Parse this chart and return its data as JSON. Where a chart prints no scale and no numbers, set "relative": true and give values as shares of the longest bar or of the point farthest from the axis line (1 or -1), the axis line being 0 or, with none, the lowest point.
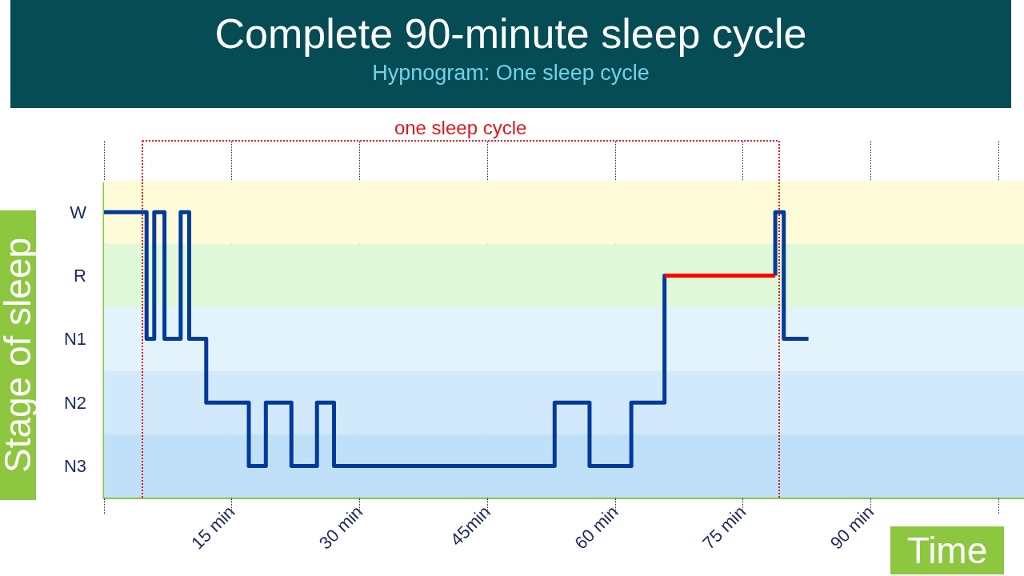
{
  "chart_data": {
    "type": "step",
    "title": "Complete 90-minute sleep cycle",
    "subtitle": "Hypnogram: One sleep cycle",
    "xlabel": "Time",
    "ylabel": "Stage of sleep",
    "annotations": [
      "one sleep cycle"
    ],
    "relative": true,
    "series": [
      {
        "color": "#003a9b",
        "x": [
          0,
          5,
          5.9,
          7.1,
          9,
          10,
          12,
          17,
          19,
          22,
          25,
          27,
          52.9,
          57,
          61.9,
          65.8,
          70,
          78.8,
          78.8,
          79.8,
          82.7
        ],
        "values": [
          1,
          0.556,
          1,
          0.556,
          1,
          0.556,
          0.333,
          0.111,
          0.333,
          0.111,
          0.333,
          0.111,
          0.333,
          0.111,
          0.333,
          0.778,
          null,
          0.778,
          1,
          0.556,
          0.556
        ]
      },
      {
        "color": "#ff0000",
        "x": [
          65.8,
          78.8
        ],
        "values": [
          0.778,
          0.778
        ]
      }
    ],
    "xlim": [
      0,
      108
    ],
    "xticks": [
      {
        "value": 0,
        "label": null
      },
      {
        "value": 15,
        "label": "15 min"
      },
      {
        "value": 30,
        "label": "30 min"
      },
      {
        "value": 45,
        "label": "45min"
      },
      {
        "value": 60,
        "label": "60 min"
      },
      {
        "value": 75,
        "label": "75 min"
      },
      {
        "value": 90,
        "label": "90 min"
      },
      {
        "value": 105,
        "label": null
      }
    ],
    "bands": [
      {
        "axis": "y",
        "from": 0.889,
        "to": 1.111,
        "label": "W",
        "color": "#fdfbd8"
      },
      {
        "axis": "y",
        "from": 0.667,
        "to": 0.889,
        "label": "R",
        "color": "#dff8d8"
      },
      {
        "axis": "y",
        "from": 0.444,
        "to": 0.667,
        "label": "N1",
        "color": "#e3f3fc"
      },
      {
        "axis": "y",
        "from": 0.222,
        "to": 0.444,
        "label": "N2",
        "color": "#d2e9fb"
      },
      {
        "axis": "y",
        "from": 0,
        "to": 0.222,
        "label": "N3",
        "color": "#bfe0f8"
      }
    ],
    "ref_lines": [
      {
        "axis": "x",
        "value": 4.5,
        "color": "#e0161b",
        "line_style": "dotted"
      },
      {
        "axis": "x",
        "value": 79.2,
        "color": "#e0161b",
        "line_style": "dotted"
      }
    ],
    "grid": "x",
    "marker": "none",
    "line_style": "solid"
  }
}
